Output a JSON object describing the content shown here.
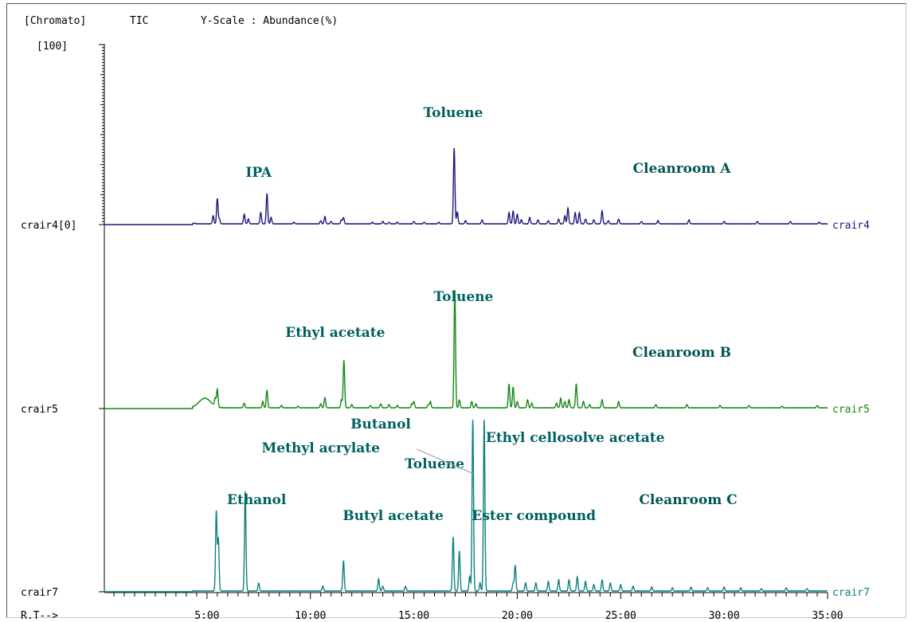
{
  "header": {
    "mode": "[Chromato]",
    "signal": "TIC",
    "yscale": "Y-Scale : Abundance(%)"
  },
  "chart_data": {
    "type": "line",
    "title": "",
    "xlabel": "R.T-->",
    "ylabel": "[100]",
    "xlim": [
      0,
      35
    ],
    "x_ticks": [
      "5:00",
      "10:00",
      "15:00",
      "20:00",
      "25:00",
      "30:00",
      "35:00"
    ],
    "x_tick_values": [
      5,
      10,
      15,
      20,
      25,
      30,
      35
    ],
    "y_top_label": "[100]",
    "panels": [
      {
        "trace": "crair4",
        "left_label": "crair4[0]",
        "right_label": "crair4",
        "color": "#1a1a7a",
        "room": "Cleanroom A",
        "peaks": [
          [
            4.4,
            1
          ],
          [
            5.3,
            10
          ],
          [
            5.5,
            32
          ],
          [
            5.6,
            6
          ],
          [
            6.8,
            12
          ],
          [
            7.0,
            6
          ],
          [
            7.6,
            14
          ],
          [
            7.9,
            38
          ],
          [
            8.1,
            8
          ],
          [
            9.2,
            2
          ],
          [
            10.5,
            4
          ],
          [
            10.7,
            9
          ],
          [
            11.0,
            3
          ],
          [
            11.5,
            5
          ],
          [
            11.6,
            8
          ],
          [
            13.0,
            2
          ],
          [
            13.5,
            3
          ],
          [
            13.8,
            2
          ],
          [
            14.2,
            2
          ],
          [
            15.0,
            3
          ],
          [
            15.5,
            2
          ],
          [
            16.2,
            2
          ],
          [
            16.95,
            95
          ],
          [
            17.1,
            15
          ],
          [
            17.5,
            4
          ],
          [
            18.3,
            5
          ],
          [
            19.6,
            14
          ],
          [
            19.8,
            16
          ],
          [
            20.0,
            12
          ],
          [
            20.2,
            5
          ],
          [
            20.6,
            8
          ],
          [
            21.0,
            5
          ],
          [
            21.5,
            4
          ],
          [
            22.0,
            6
          ],
          [
            22.3,
            10
          ],
          [
            22.45,
            20
          ],
          [
            22.8,
            14
          ],
          [
            23.0,
            14
          ],
          [
            23.3,
            6
          ],
          [
            23.7,
            5
          ],
          [
            24.1,
            16
          ],
          [
            24.4,
            4
          ],
          [
            24.9,
            6
          ],
          [
            26.0,
            3
          ],
          [
            26.8,
            4
          ],
          [
            28.3,
            5
          ],
          [
            30.0,
            3
          ],
          [
            31.6,
            3
          ],
          [
            33.2,
            3
          ],
          [
            34.6,
            2
          ]
        ],
        "annotations": [
          {
            "text": "IPA",
            "x": 7.5,
            "y": 60
          },
          {
            "text": "Toluene",
            "x": 16.9,
            "y": 135
          }
        ]
      },
      {
        "trace": "crair5",
        "left_label": "crair5",
        "right_label": "crair5",
        "color": "#138813",
        "room": "Cleanroom B",
        "hump": {
          "x": 4.9,
          "height": 12,
          "width": 0.4
        },
        "peaks": [
          [
            5.4,
            10
          ],
          [
            5.5,
            22
          ],
          [
            6.8,
            6
          ],
          [
            7.7,
            8
          ],
          [
            7.9,
            22
          ],
          [
            8.6,
            3
          ],
          [
            9.4,
            2
          ],
          [
            10.5,
            5
          ],
          [
            10.7,
            13
          ],
          [
            11.5,
            10
          ],
          [
            11.62,
            60
          ],
          [
            12.0,
            4
          ],
          [
            12.9,
            3
          ],
          [
            13.4,
            5
          ],
          [
            13.8,
            4
          ],
          [
            14.2,
            3
          ],
          [
            14.9,
            5
          ],
          [
            15.0,
            8
          ],
          [
            15.7,
            4
          ],
          [
            15.8,
            8
          ],
          [
            16.98,
            148
          ],
          [
            17.2,
            10
          ],
          [
            17.8,
            8
          ],
          [
            18.0,
            5
          ],
          [
            19.6,
            30
          ],
          [
            19.8,
            26
          ],
          [
            20.0,
            8
          ],
          [
            20.5,
            10
          ],
          [
            20.7,
            6
          ],
          [
            21.9,
            6
          ],
          [
            22.1,
            12
          ],
          [
            22.3,
            8
          ],
          [
            22.5,
            10
          ],
          [
            22.85,
            30
          ],
          [
            23.2,
            8
          ],
          [
            23.5,
            4
          ],
          [
            24.1,
            10
          ],
          [
            24.9,
            8
          ],
          [
            26.7,
            4
          ],
          [
            28.2,
            4
          ],
          [
            29.8,
            3
          ],
          [
            31.2,
            3
          ],
          [
            32.8,
            2
          ],
          [
            34.5,
            3
          ]
        ],
        "annotations": [
          {
            "text": "Ethyl acetate",
            "x": 11.2,
            "y": 90
          },
          {
            "text": "Toluene",
            "x": 17.4,
            "y": 135
          }
        ]
      },
      {
        "trace": "crair7",
        "left_label": "crair7",
        "right_label": "crair7",
        "color": "#0e8080",
        "room": "Cleanroom C",
        "peaks": [
          [
            5.45,
            100
          ],
          [
            5.55,
            65
          ],
          [
            6.85,
            125
          ],
          [
            7.5,
            10
          ],
          [
            10.6,
            6
          ],
          [
            11.6,
            38
          ],
          [
            13.3,
            15
          ],
          [
            13.5,
            6
          ],
          [
            14.6,
            6
          ],
          [
            16.9,
            68
          ],
          [
            17.2,
            50
          ],
          [
            17.7,
            18
          ],
          [
            17.85,
            215
          ],
          [
            18.2,
            10
          ],
          [
            18.4,
            215
          ],
          [
            19.8,
            10
          ],
          [
            19.9,
            32
          ],
          [
            20.4,
            10
          ],
          [
            20.9,
            10
          ],
          [
            21.5,
            12
          ],
          [
            22.0,
            14
          ],
          [
            22.5,
            14
          ],
          [
            22.9,
            18
          ],
          [
            23.3,
            12
          ],
          [
            23.7,
            8
          ],
          [
            24.1,
            14
          ],
          [
            24.5,
            10
          ],
          [
            25.0,
            8
          ],
          [
            25.6,
            6
          ],
          [
            26.5,
            5
          ],
          [
            27.5,
            4
          ],
          [
            28.4,
            5
          ],
          [
            29.2,
            4
          ],
          [
            30.0,
            5
          ],
          [
            30.8,
            4
          ],
          [
            31.8,
            3
          ],
          [
            33.0,
            4
          ],
          [
            34.0,
            3
          ]
        ],
        "annotations": [
          {
            "text": "Ethanol",
            "x": 7.4,
            "y": 110
          },
          {
            "text": "Methyl acrylate",
            "x": 10.5,
            "y": 175
          },
          {
            "text": "Butanol",
            "x": 13.4,
            "y": 205
          },
          {
            "text": "Toluene",
            "x": 16.0,
            "y": 155
          },
          {
            "text": "Butyl acetate",
            "x": 14.0,
            "y": 90
          },
          {
            "text": "Ester compound",
            "x": 20.8,
            "y": 90
          },
          {
            "text": "Ethyl cellosolve acetate",
            "x": 22.8,
            "y": 188
          }
        ]
      }
    ]
  }
}
